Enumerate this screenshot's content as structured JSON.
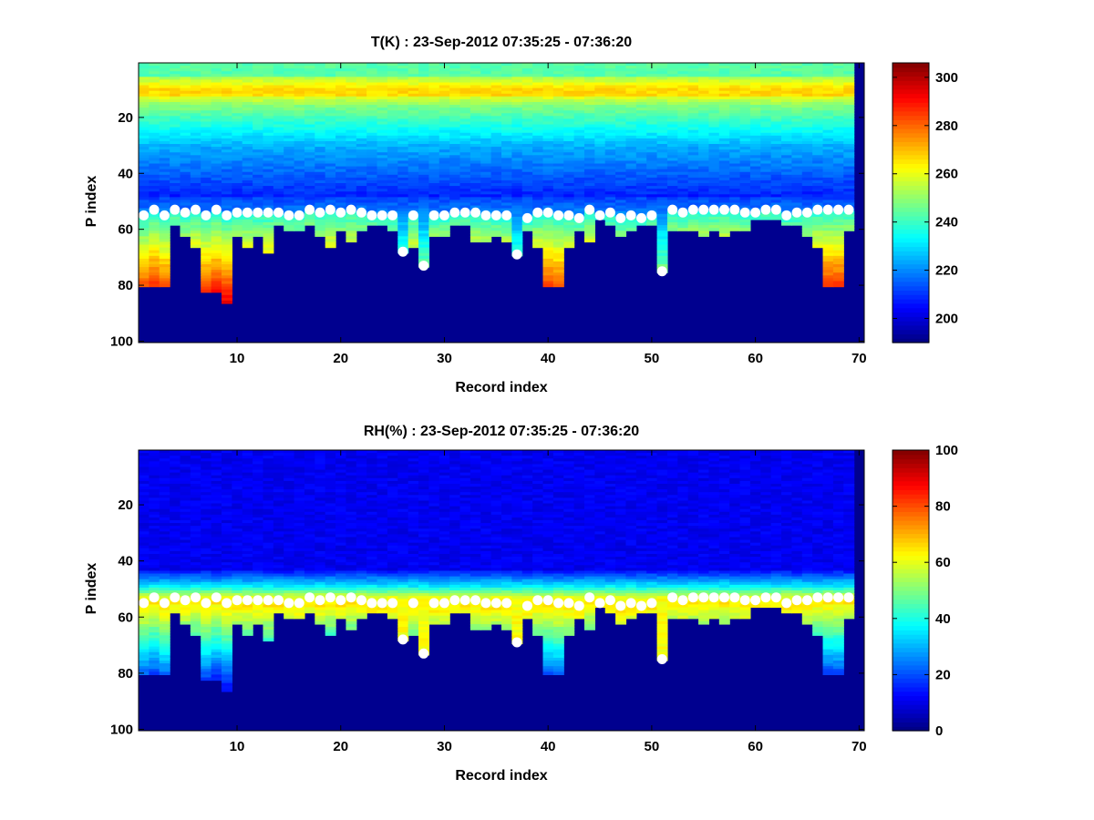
{
  "chart_data": [
    {
      "type": "heatmap",
      "title": "T(K) : 23-Sep-2012 07:35:25 - 07:36:20",
      "xlabel": "Record index",
      "ylabel": "P index",
      "xlim": [
        1,
        70
      ],
      "ylim": [
        100,
        1
      ],
      "y_reversed": true,
      "xticks": [
        10,
        20,
        30,
        40,
        50,
        60,
        70
      ],
      "yticks": [
        20,
        40,
        60,
        80,
        100
      ],
      "colormap": "jet",
      "clim": [
        190,
        306
      ],
      "colorbar_ticks": [
        200,
        220,
        240,
        260,
        280,
        300
      ],
      "background_color": "#00008f",
      "marker_color": "#ffffff"
    },
    {
      "type": "heatmap",
      "title": "RH(%) : 23-Sep-2012 07:35:25 - 07:36:20",
      "xlabel": "Record index",
      "ylabel": "P index",
      "xlim": [
        1,
        70
      ],
      "ylim": [
        100,
        1
      ],
      "y_reversed": true,
      "xticks": [
        10,
        20,
        30,
        40,
        50,
        60,
        70
      ],
      "yticks": [
        20,
        40,
        60,
        80,
        100
      ],
      "colormap": "jet",
      "clim": [
        0,
        100
      ],
      "colorbar_ticks": [
        0,
        20,
        40,
        60,
        80,
        100
      ],
      "background_color": "#00008f",
      "marker_color": "#ffffff"
    }
  ],
  "profiles": {
    "record_index": [
      1,
      2,
      3,
      4,
      5,
      6,
      7,
      8,
      9,
      10,
      11,
      12,
      13,
      14,
      15,
      16,
      17,
      18,
      19,
      20,
      21,
      22,
      23,
      24,
      25,
      26,
      27,
      28,
      29,
      30,
      31,
      32,
      33,
      34,
      35,
      36,
      37,
      38,
      39,
      40,
      41,
      42,
      43,
      44,
      45,
      46,
      47,
      48,
      49,
      50,
      51,
      52,
      53,
      54,
      55,
      56,
      57,
      58,
      59,
      60,
      61,
      62,
      63,
      64,
      65,
      66,
      67,
      68,
      69
    ],
    "marker_p_index": [
      55,
      53,
      55,
      53,
      54,
      53,
      55,
      53,
      55,
      54,
      54,
      54,
      54,
      54,
      55,
      55,
      53,
      54,
      53,
      54,
      53,
      54,
      55,
      55,
      55,
      68,
      55,
      73,
      55,
      55,
      54,
      54,
      54,
      55,
      55,
      55,
      69,
      56,
      54,
      54,
      55,
      55,
      56,
      53,
      55,
      54,
      56,
      55,
      56,
      55,
      75,
      53,
      54,
      53,
      53,
      53,
      53,
      53,
      54,
      54,
      53,
      53,
      55,
      54,
      54,
      53,
      53,
      53,
      53
    ],
    "data_bottom_p_index": [
      80,
      80,
      80,
      58,
      62,
      66,
      82,
      82,
      86,
      62,
      66,
      62,
      68,
      58,
      60,
      60,
      58,
      62,
      66,
      60,
      64,
      60,
      58,
      58,
      60,
      68,
      66,
      73,
      62,
      62,
      58,
      58,
      64,
      64,
      62,
      64,
      69,
      60,
      66,
      80,
      80,
      66,
      60,
      64,
      56,
      58,
      62,
      60,
      58,
      58,
      75,
      60,
      60,
      60,
      62,
      60,
      62,
      60,
      60,
      56,
      56,
      56,
      58,
      58,
      62,
      66,
      80,
      80,
      60
    ]
  }
}
